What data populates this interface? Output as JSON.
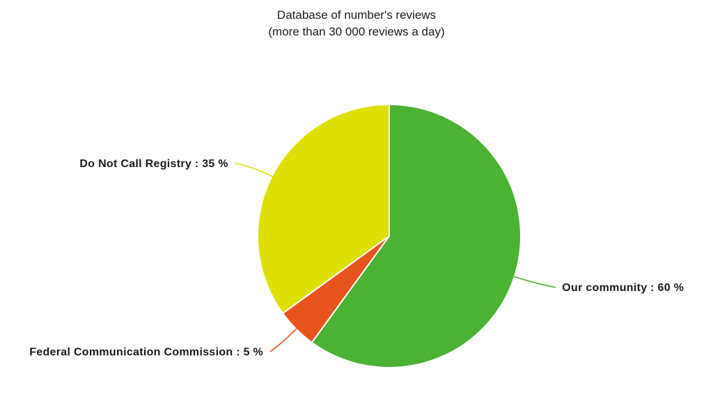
{
  "header": {
    "title": "Database of number's reviews",
    "subtitle": "(more than 30 000 reviews a day)"
  },
  "chart_data": {
    "type": "pie",
    "title": "Database of number's reviews",
    "subtitle": "(more than 30 000 reviews a day)",
    "unit": "%",
    "start_angle_deg": 0,
    "direction": "clockwise",
    "legend_position": "none",
    "label_style": "outside-with-curved-leader-lines",
    "label_text_color": "#1a1a1a",
    "background_color": "#ffffff",
    "separator_color": "#ffffff",
    "slices": [
      {
        "name": "Our community",
        "value": 60,
        "color": "#4bb233",
        "display_label": "Our community : 60 %"
      },
      {
        "name": "Federal Communication Commission",
        "value": 5,
        "color": "#e8541e",
        "display_label": "Federal Communication Commission : 5 %"
      },
      {
        "name": "Do Not Call Registry",
        "value": 35,
        "color": "#dde002",
        "display_label": "Do Not Call Registry : 35 %"
      }
    ]
  }
}
